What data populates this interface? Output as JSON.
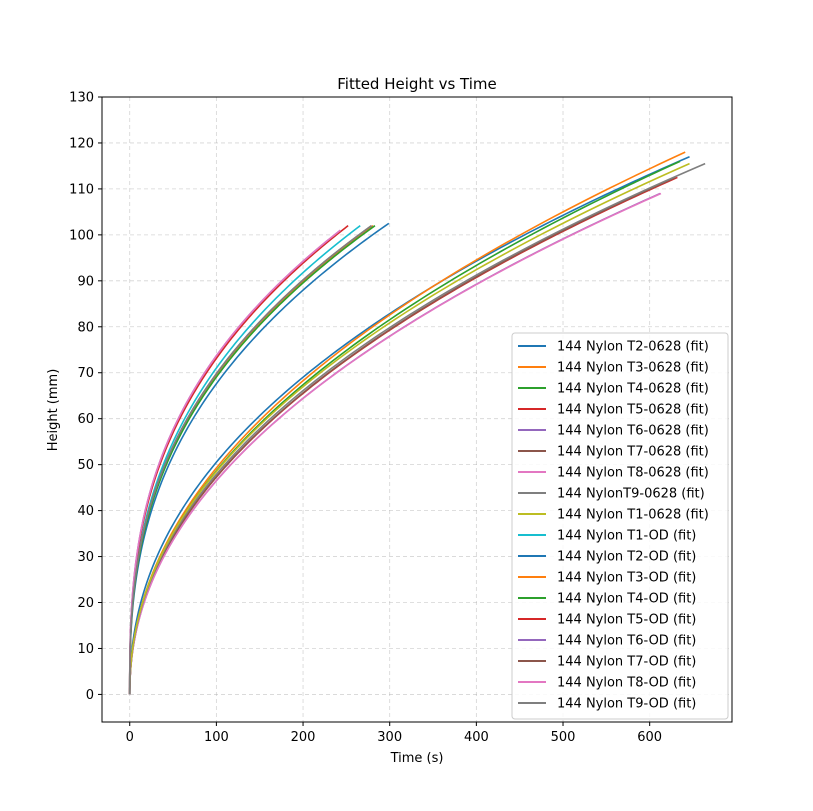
{
  "chart_data": {
    "type": "line",
    "title": "Fitted Height vs Time",
    "xlabel": "Time (s)",
    "ylabel": "Height (mm)",
    "xlim": [
      -32,
      695
    ],
    "ylim": [
      -6,
      130
    ],
    "xticks": [
      0,
      100,
      200,
      300,
      400,
      500,
      600
    ],
    "yticks": [
      0,
      10,
      20,
      30,
      40,
      50,
      60,
      70,
      80,
      90,
      100,
      110,
      120,
      130
    ],
    "grid": true,
    "legend_position": "lower-right",
    "series": [
      {
        "name": "144 Nylon T2-0628 (fit)",
        "color": "#1f77b4",
        "t_end": 646,
        "h_end": 117,
        "exponent": 0.45
      },
      {
        "name": "144 Nylon T3-0628 (fit)",
        "color": "#ff7f0e",
        "t_end": 641,
        "h_end": 118,
        "exponent": 0.47
      },
      {
        "name": "144 Nylon T4-0628 (fit)",
        "color": "#2ca02c",
        "t_end": 635,
        "h_end": 116,
        "exponent": 0.47
      },
      {
        "name": "144 Nylon T5-0628 (fit)",
        "color": "#d62728",
        "t_end": 632,
        "h_end": 112.5,
        "exponent": 0.47
      },
      {
        "name": "144 Nylon T6-0628 (fit)",
        "color": "#9467bd",
        "t_end": 612,
        "h_end": 109,
        "exponent": 0.47
      },
      {
        "name": "144 Nylon T7-0628 (fit)",
        "color": "#8c564b",
        "t_end": 630,
        "h_end": 112.5,
        "exponent": 0.47
      },
      {
        "name": "144 Nylon T8-0628 (fit)",
        "color": "#e377c2",
        "t_end": 613,
        "h_end": 109,
        "exponent": 0.47
      },
      {
        "name": "144 NylonT9-0628 (fit)",
        "color": "#7f7f7f",
        "t_end": 664,
        "h_end": 115.5,
        "exponent": 0.465
      },
      {
        "name": "144 Nylon T1-0628 (fit)",
        "color": "#bcbd22",
        "t_end": 646,
        "h_end": 115.5,
        "exponent": 0.465
      },
      {
        "name": "144 Nylon T1-OD (fit)",
        "color": "#17becf",
        "t_end": 266,
        "h_end": 102,
        "exponent": 0.37
      },
      {
        "name": "144 Nylon T2-OD (fit)",
        "color": "#1f77b4",
        "t_end": 299,
        "h_end": 102.5,
        "exponent": 0.38
      },
      {
        "name": "144 Nylon T3-OD (fit)",
        "color": "#ff7f0e",
        "t_end": 281,
        "h_end": 102,
        "exponent": 0.37
      },
      {
        "name": "144 Nylon T4-OD (fit)",
        "color": "#2ca02c",
        "t_end": 283,
        "h_end": 102,
        "exponent": 0.375
      },
      {
        "name": "144 Nylon T5-OD (fit)",
        "color": "#d62728",
        "t_end": 252,
        "h_end": 102,
        "exponent": 0.36
      },
      {
        "name": "144 Nylon T6-OD (fit)",
        "color": "#9467bd",
        "t_end": 243,
        "h_end": 101,
        "exponent": 0.355
      },
      {
        "name": "144 Nylon T7-OD (fit)",
        "color": "#8c564b",
        "t_end": 279,
        "h_end": 102,
        "exponent": 0.37
      },
      {
        "name": "144 Nylon T8-OD (fit)",
        "color": "#e377c2",
        "t_end": 243,
        "h_end": 101,
        "exponent": 0.355
      },
      {
        "name": "144 Nylon T9-OD (fit)",
        "color": "#7f7f7f",
        "t_end": 279,
        "h_end": 102,
        "exponent": 0.37
      }
    ]
  }
}
